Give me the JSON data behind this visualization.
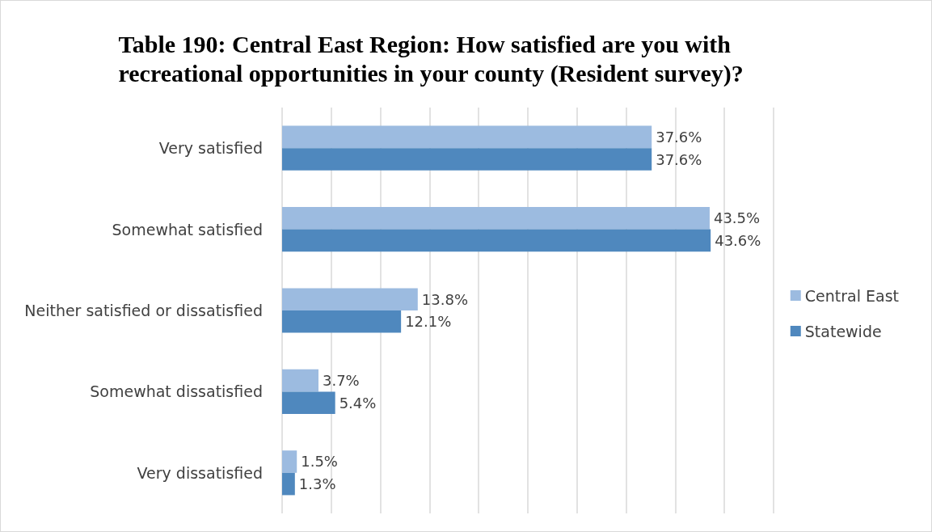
{
  "chart_data": {
    "type": "bar",
    "orientation": "horizontal",
    "title": "Table 190: Central East Region: How satisfied are you with recreational opportunities in your county (Resident survey)?",
    "categories": [
      "Very satisfied",
      "Somewhat satisfied",
      "Neither satisfied or dissatisfied",
      "Somewhat dissatisfied",
      "Very dissatisfied"
    ],
    "series": [
      {
        "name": "Central East",
        "color": "#9cbbe0",
        "values": [
          37.6,
          43.5,
          13.8,
          3.7,
          1.5
        ],
        "value_labels": [
          "37.6%",
          "43.5%",
          "13.8%",
          "3.7%",
          "1.5%"
        ]
      },
      {
        "name": "Statewide",
        "color": "#4f88be",
        "values": [
          37.6,
          43.6,
          12.1,
          5.4,
          1.3
        ],
        "value_labels": [
          "37.6%",
          "43.6%",
          "12.1%",
          "5.4%",
          "1.3%"
        ]
      }
    ],
    "xlim": [
      0,
      50
    ],
    "xticks": [
      {
        "value": 0,
        "label": null
      },
      {
        "value": 5,
        "label": null
      },
      {
        "value": 10,
        "label": null
      },
      {
        "value": 15,
        "label": null
      },
      {
        "value": 20,
        "label": null
      },
      {
        "value": 25,
        "label": null
      },
      {
        "value": 30,
        "label": null
      },
      {
        "value": 35,
        "label": null
      },
      {
        "value": 40,
        "label": null
      },
      {
        "value": 45,
        "label": null
      },
      {
        "value": 50,
        "label": null
      }
    ],
    "tick_labels": "y",
    "grid": "x",
    "legend": "right"
  }
}
